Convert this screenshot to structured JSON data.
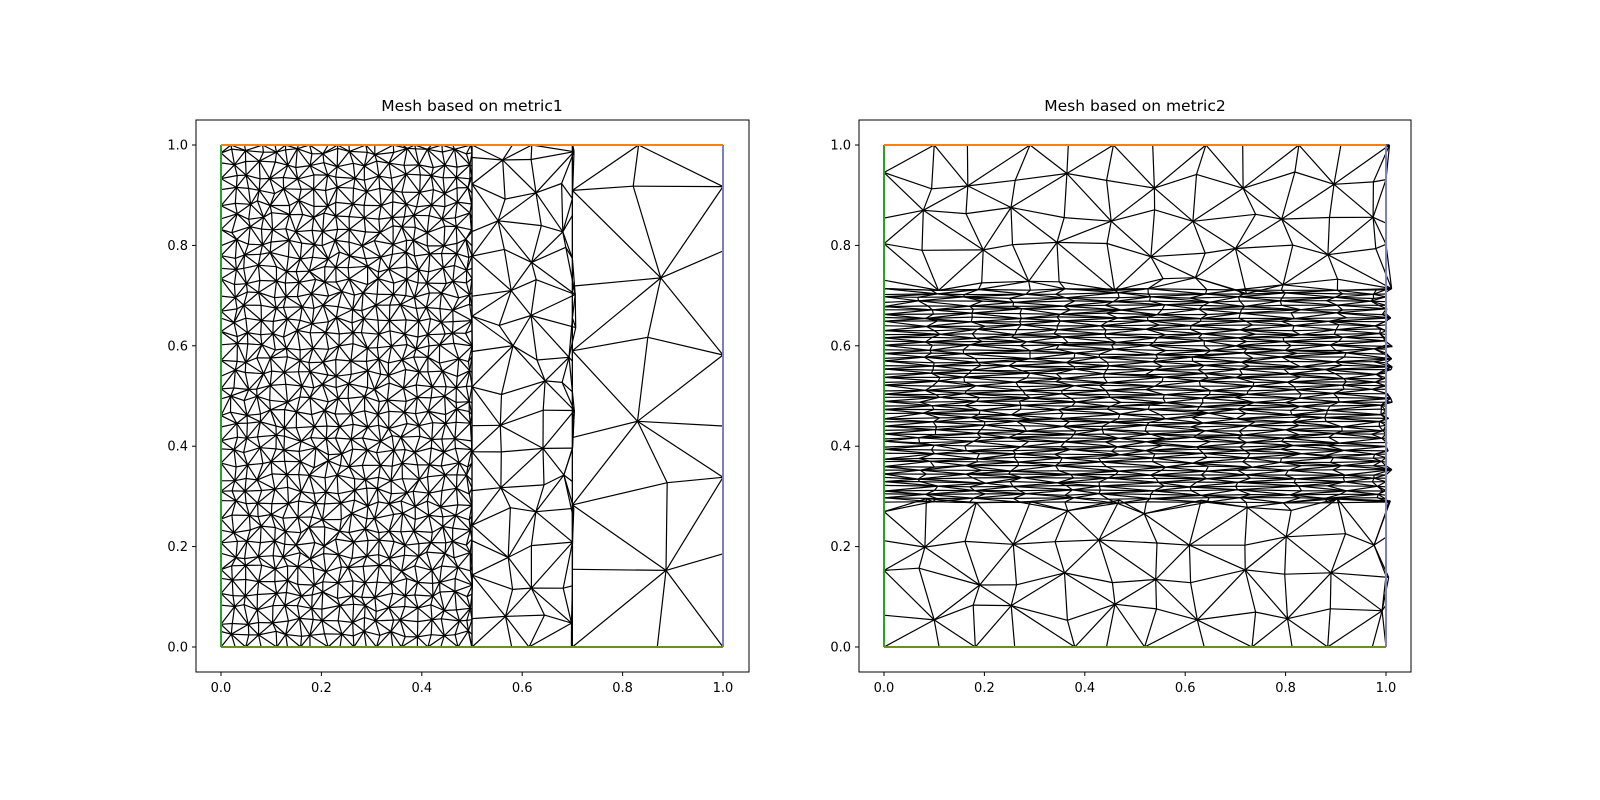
{
  "chart_data": [
    {
      "type": "mesh",
      "title": "Mesh based on metric1",
      "xlabel": "",
      "ylabel": "",
      "xlim": [
        -0.05,
        1.05
      ],
      "ylim": [
        -0.05,
        1.05
      ],
      "xticks": [
        "0.0",
        "0.2",
        "0.4",
        "0.6",
        "0.8",
        "1.0"
      ],
      "yticks": [
        "0.0",
        "0.2",
        "0.4",
        "0.6",
        "0.8",
        "1.0"
      ],
      "grid": false,
      "mesh": {
        "refinement": "dense near x=0, coarsening toward x=1",
        "columns": [
          {
            "x_end": 0.5,
            "spacing": 0.026
          },
          {
            "x_end": 0.7,
            "spacing": 0.07
          },
          {
            "x_end": 1.0,
            "spacing": 0.15
          }
        ]
      },
      "boundary_colors": {
        "left": "#2ca02c",
        "right": "#7f7fbf",
        "top": "#ff7f0e",
        "bottom": "#6b8e23"
      }
    },
    {
      "type": "mesh",
      "title": "Mesh based on metric2",
      "xlabel": "",
      "ylabel": "",
      "xlim": [
        -0.05,
        1.05
      ],
      "ylim": [
        -0.05,
        1.05
      ],
      "xticks": [
        "0.0",
        "0.2",
        "0.4",
        "0.6",
        "0.8",
        "1.0"
      ],
      "yticks": [
        "0.0",
        "0.2",
        "0.4",
        "0.6",
        "0.8",
        "1.0"
      ],
      "grid": false,
      "mesh": {
        "refinement": "anisotropic, dense in y within band y=0.3..0.7",
        "bands": [
          {
            "y_end": 0.28,
            "spacing": 0.07
          },
          {
            "y_end": 0.72,
            "spacing": 0.008
          },
          {
            "y_end": 1.0,
            "spacing": 0.07
          }
        ],
        "x_spacing": 0.09
      },
      "boundary_colors": {
        "left": "#2ca02c",
        "right": "#7f7fbf",
        "top": "#ff7f0e",
        "bottom": "#6b8e23"
      }
    }
  ]
}
